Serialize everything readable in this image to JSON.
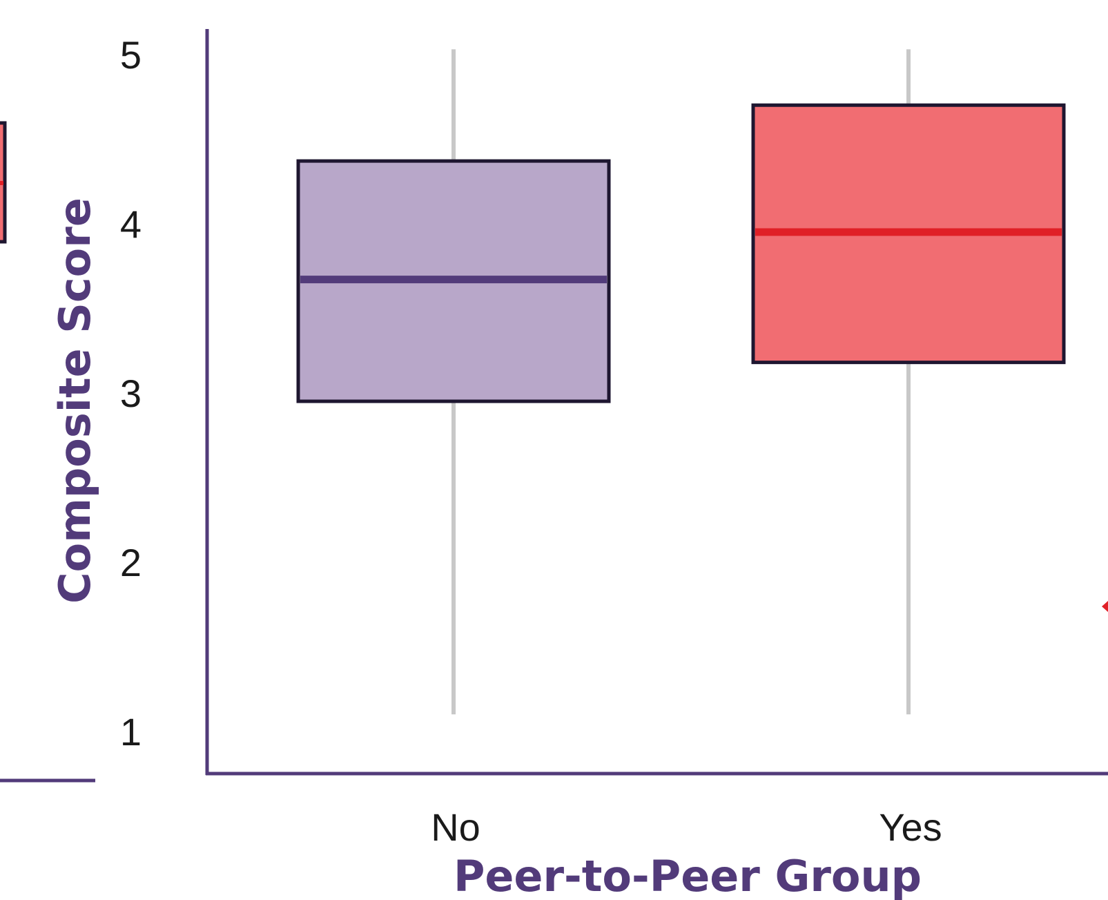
{
  "chart_data": {
    "type": "box",
    "title": "",
    "xlabel": "Peer-to-Peer Group",
    "ylabel": "Composite Score",
    "ylim": [
      0.75,
      5.15
    ],
    "yticks": [
      1,
      2,
      3,
      4,
      5
    ],
    "ytick_labels": [
      "1",
      "2",
      "3",
      "4",
      "5"
    ],
    "grid": false,
    "categories": [
      "No",
      "Yes"
    ],
    "boxes": [
      {
        "category": "No",
        "whisker_low": 1.1,
        "q1": 2.95,
        "median": 3.67,
        "q3": 4.37,
        "whisker_high": 5.03,
        "fill": "#b8a7c9",
        "median_color": "#523b7a"
      },
      {
        "category": "Yes",
        "whisker_low": 1.1,
        "q1": 3.18,
        "median": 3.95,
        "q3": 4.7,
        "whisker_high": 5.03,
        "fill": "#f16d72",
        "median_color": "#e01f26"
      }
    ],
    "colors": {
      "axis": "#523b7a",
      "box_edge": "#1e1630",
      "whisker": "#c8c8c8"
    }
  }
}
